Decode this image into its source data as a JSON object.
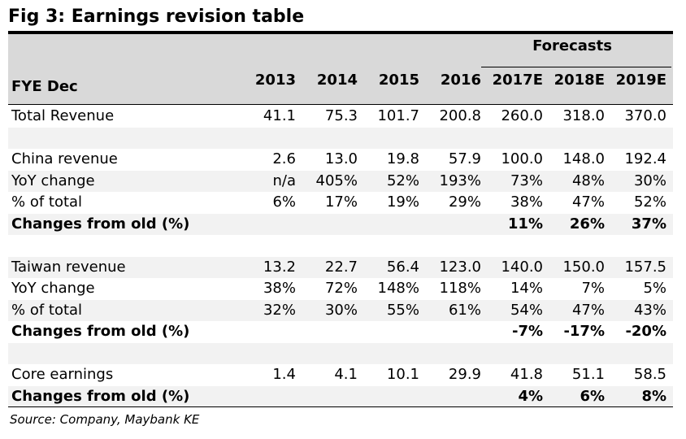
{
  "title": "Fig 3: Earnings revision table",
  "header": {
    "forecasts_label": "Forecasts",
    "fye_label": "FYE Dec",
    "years": [
      "2013",
      "2014",
      "2015",
      "2016",
      "2017E",
      "2018E",
      "2019E"
    ]
  },
  "rows": [
    {
      "label": "Total Revenue",
      "values": [
        "41.1",
        "75.3",
        "101.7",
        "200.8",
        "260.0",
        "318.0",
        "370.0"
      ]
    },
    {
      "label": "",
      "values": [
        "",
        "",
        "",
        "",
        "",
        "",
        ""
      ]
    },
    {
      "label": "China revenue",
      "values": [
        "2.6",
        "13.0",
        "19.8",
        "57.9",
        "100.0",
        "148.0",
        "192.4"
      ]
    },
    {
      "label": "YoY change",
      "values": [
        "n/a",
        "405%",
        "52%",
        "193%",
        "73%",
        "48%",
        "30%"
      ]
    },
    {
      "label": "% of total",
      "values": [
        "6%",
        "17%",
        "19%",
        "29%",
        "38%",
        "47%",
        "52%"
      ]
    },
    {
      "label": "Changes from old (%)",
      "bold": true,
      "values": [
        "",
        "",
        "",
        "",
        "11%",
        "26%",
        "37%"
      ]
    },
    {
      "label": "",
      "values": [
        "",
        "",
        "",
        "",
        "",
        "",
        ""
      ]
    },
    {
      "label": "Taiwan revenue",
      "values": [
        "13.2",
        "22.7",
        "56.4",
        "123.0",
        "140.0",
        "150.0",
        "157.5"
      ]
    },
    {
      "label": "YoY change",
      "values": [
        "38%",
        "72%",
        "148%",
        "118%",
        "14%",
        "7%",
        "5%"
      ]
    },
    {
      "label": "% of total",
      "values": [
        "32%",
        "30%",
        "55%",
        "61%",
        "54%",
        "47%",
        "43%"
      ]
    },
    {
      "label": "Changes from old (%)",
      "bold": true,
      "values": [
        "",
        "",
        "",
        "",
        "-7%",
        "-17%",
        "-20%"
      ]
    },
    {
      "label": "",
      "values": [
        "",
        "",
        "",
        "",
        "",
        "",
        ""
      ]
    },
    {
      "label": "Core earnings",
      "values": [
        "1.4",
        "4.1",
        "10.1",
        "29.9",
        "41.8",
        "51.1",
        "58.5"
      ]
    },
    {
      "label": "Changes from old (%)",
      "bold": true,
      "values": [
        "",
        "",
        "",
        "",
        "4%",
        "6%",
        "8%"
      ]
    }
  ],
  "source": "Source: Company, Maybank KE"
}
